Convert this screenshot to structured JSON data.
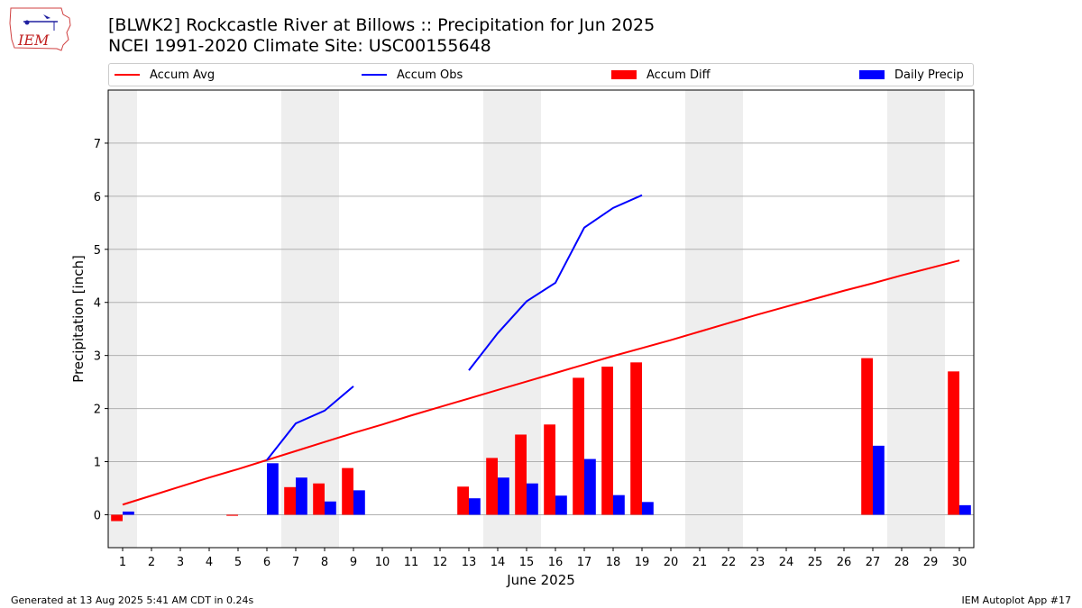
{
  "title": "[BLWK2] Rockcastle River at Billows :: Precipitation for Jun 2025",
  "subtitle": "NCEI 1991-2020 Climate Site: USC00155648",
  "footer_left": "Generated at 13 Aug 2025 5:41 AM CDT in 0.24s",
  "footer_right": "IEM Autoplot App #17",
  "logo_text": "IEM",
  "colors": {
    "avg": "#ff0000",
    "obs": "#0000ff",
    "diff": "#ff0000",
    "daily": "#0000ff",
    "shade": "#eeeeee",
    "grid": "#b0b0b0"
  },
  "legend": [
    {
      "label": "Accum Avg",
      "kind": "line",
      "color": "#ff0000"
    },
    {
      "label": "Accum Obs",
      "kind": "line",
      "color": "#0000ff"
    },
    {
      "label": "Accum Diff",
      "kind": "bar",
      "color": "#ff0000"
    },
    {
      "label": "Daily Precip",
      "kind": "bar",
      "color": "#0000ff"
    }
  ],
  "chart_data": {
    "type": "bar",
    "xlabel": "June 2025",
    "ylabel": "Precipitation [inch]",
    "xlim": [
      0.5,
      30.5
    ],
    "ylim": [
      -0.62,
      8.0
    ],
    "yticks": [
      0,
      1,
      2,
      3,
      4,
      5,
      6,
      7
    ],
    "grid": true,
    "legend_position": "top",
    "weekend_shading": [
      [
        1,
        1
      ],
      [
        7,
        8
      ],
      [
        14,
        15
      ],
      [
        21,
        22
      ],
      [
        28,
        29
      ]
    ],
    "x": [
      1,
      2,
      3,
      4,
      5,
      6,
      7,
      8,
      9,
      10,
      11,
      12,
      13,
      14,
      15,
      16,
      17,
      18,
      19,
      20,
      21,
      22,
      23,
      24,
      25,
      26,
      27,
      28,
      29,
      30
    ],
    "series": [
      {
        "name": "Accum Avg",
        "kind": "line",
        "values": [
          0.19,
          0.36,
          0.53,
          0.7,
          0.86,
          1.03,
          1.2,
          1.37,
          1.54,
          1.7,
          1.87,
          2.03,
          2.19,
          2.35,
          2.51,
          2.67,
          2.83,
          2.99,
          3.14,
          3.29,
          3.45,
          3.61,
          3.77,
          3.92,
          4.07,
          4.22,
          4.36,
          4.51,
          4.65,
          4.79
        ]
      },
      {
        "name": "Accum Obs",
        "kind": "line",
        "values": [
          null,
          null,
          null,
          null,
          null,
          1.03,
          1.72,
          1.96,
          2.42,
          null,
          null,
          null,
          2.72,
          3.42,
          4.02,
          4.37,
          5.41,
          5.78,
          6.02,
          null,
          null,
          null,
          null,
          null,
          null,
          null,
          null,
          null,
          null,
          null
        ]
      },
      {
        "name": "Accum Diff",
        "kind": "bar",
        "values": [
          -0.12,
          null,
          null,
          null,
          -0.02,
          null,
          0.52,
          0.59,
          0.88,
          null,
          null,
          null,
          0.53,
          1.07,
          1.51,
          1.7,
          2.58,
          2.79,
          2.87,
          null,
          null,
          null,
          null,
          null,
          null,
          null,
          2.95,
          null,
          null,
          2.7
        ]
      },
      {
        "name": "Daily Precip",
        "kind": "bar",
        "values": [
          0.06,
          null,
          null,
          null,
          null,
          0.97,
          0.7,
          0.25,
          0.46,
          null,
          null,
          null,
          0.31,
          0.7,
          0.59,
          0.36,
          1.05,
          0.37,
          0.24,
          null,
          null,
          null,
          null,
          null,
          null,
          null,
          1.3,
          null,
          null,
          0.18
        ]
      }
    ]
  }
}
